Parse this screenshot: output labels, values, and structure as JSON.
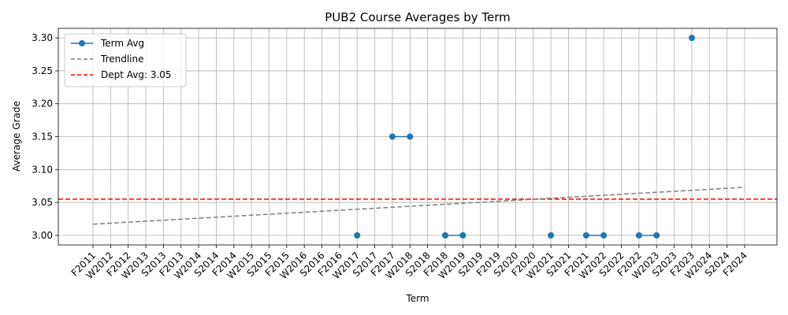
{
  "chart_data": {
    "type": "line",
    "title": "PUB2 Course Averages by Term",
    "xlabel": "Term",
    "ylabel": "Average Grade",
    "categories": [
      "F2011",
      "W2012",
      "F2012",
      "W2013",
      "S2013",
      "F2013",
      "W2014",
      "S2014",
      "F2014",
      "W2015",
      "S2015",
      "F2015",
      "W2016",
      "S2016",
      "F2016",
      "W2017",
      "S2017",
      "F2017",
      "W2018",
      "S2018",
      "F2018",
      "W2019",
      "S2019",
      "F2019",
      "S2020",
      "F2020",
      "W2021",
      "S2021",
      "F2021",
      "W2022",
      "S2022",
      "F2022",
      "W2023",
      "S2023",
      "F2023",
      "W2024",
      "S2024",
      "F2024"
    ],
    "series": [
      {
        "name": "Term Avg",
        "color": "#1f77b4",
        "marker": "circle",
        "values": [
          null,
          null,
          null,
          null,
          null,
          null,
          null,
          null,
          null,
          null,
          null,
          null,
          null,
          null,
          null,
          3.0,
          null,
          3.15,
          3.15,
          null,
          3.0,
          3.0,
          null,
          null,
          null,
          null,
          3.0,
          null,
          3.0,
          3.0,
          null,
          3.0,
          3.0,
          null,
          3.3,
          null,
          null,
          null
        ]
      },
      {
        "name": "Trendline",
        "color": "#808080",
        "style": "dashed",
        "start": 3.017,
        "end": 3.073
      },
      {
        "name": "Dept Avg: 3.05",
        "color": "#ff0000",
        "style": "dashed",
        "value": 3.055
      }
    ],
    "y_ticks": [
      "3.00",
      "3.05",
      "3.10",
      "3.15",
      "3.20",
      "3.25",
      "3.30"
    ],
    "ylim": [
      2.9855,
      3.3145
    ],
    "grid": true,
    "legend_position": "upper-left"
  }
}
